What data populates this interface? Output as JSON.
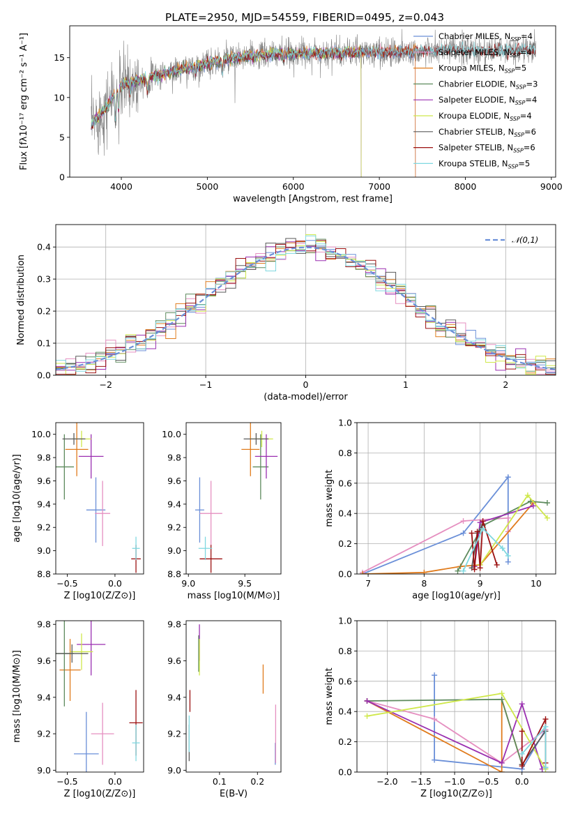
{
  "figure_title": "PLATE=2950, MJD=54559, FIBERID=0495, z=0.043",
  "colors": {
    "Chabrier MILES": "#6a8fd8",
    "Salpeter MILES": "#e58fc0",
    "Kroupa MILES": "#e07b1c",
    "Chabrier ELODIE": "#5d8a5d",
    "Salpeter ELODIE": "#9a2fb0",
    "Kroupa ELODIE": "#cfe84a",
    "Chabrier STELIB": "#5a5a5a",
    "Salpeter STELIB": "#9b1010",
    "Kroupa STELIB": "#7fd8e0"
  },
  "chart_data": [
    {
      "id": "spectrum",
      "type": "line",
      "xlabel": "wavelength [Angstrom, rest frame]",
      "ylabel": "Flux [fλ10⁻¹⁷ erg cm⁻² s⁻¹ A⁻¹]",
      "xlim": [
        3400,
        9050
      ],
      "ylim": [
        0,
        19
      ],
      "xticks": [
        4000,
        5000,
        6000,
        7000,
        8000,
        9000
      ],
      "yticks": [
        0,
        5,
        10,
        15
      ],
      "legend_position": "top-right",
      "data_color": "#808080",
      "data_profile": {
        "x": [
          3650,
          3800,
          4000,
          4300,
          4700,
          5200,
          5800,
          6500,
          7200,
          7800,
          8300,
          8820
        ],
        "y": [
          6.5,
          8.5,
          11.5,
          12.5,
          13.5,
          14.8,
          15.5,
          15.6,
          15.7,
          15.9,
          15.8,
          16.0
        ]
      },
      "series": [
        {
          "name": "Chabrier MILES, N_SSP=4",
          "color": "#6a8fd8",
          "xmax": 7420
        },
        {
          "name": "Salpeter MILES, N_SSP=4",
          "color": "#e58fc0",
          "xmax": 7420
        },
        {
          "name": "Kroupa MILES, N_SSP=5",
          "color": "#e07b1c",
          "xmax": 7420
        },
        {
          "name": "Chabrier ELODIE, N_SSP=3",
          "color": "#5d8a5d",
          "xmax": 6790
        },
        {
          "name": "Salpeter ELODIE, N_SSP=4",
          "color": "#9a2fb0",
          "xmax": 6790
        },
        {
          "name": "Kroupa ELODIE, N_SSP=4",
          "color": "#cfe84a",
          "xmax": 6790
        },
        {
          "name": "Chabrier STELIB, N_SSP=6",
          "color": "#5a5a5a",
          "xmax": 8820
        },
        {
          "name": "Salpeter STELIB, N_SSP=6",
          "color": "#9b1010",
          "xmax": 8820
        },
        {
          "name": "Kroupa STELIB, N_SSP=5",
          "color": "#7fd8e0",
          "xmax": 8820
        }
      ]
    },
    {
      "id": "residuals",
      "type": "step",
      "xlabel": "(data-model)/error",
      "ylabel": "Normed distribution",
      "xlim": [
        -2.5,
        2.5
      ],
      "ylim": [
        0,
        0.47
      ],
      "xticks": [
        -2,
        -1,
        0,
        1,
        2
      ],
      "yticks": [
        0.0,
        0.1,
        0.2,
        0.3,
        0.4
      ],
      "grid": true,
      "bin_width": 0.1,
      "reference_curve": {
        "name": "𝒩(0,1)",
        "color": "#6a8fd8",
        "style": "dashed",
        "mean": 0,
        "sigma": 1
      },
      "legend_position": "top-right"
    },
    {
      "id": "age_vs_Z",
      "type": "errorbar",
      "xlabel": "Z [log10(Z/Z⊙)]",
      "ylabel": "age [log10(age/yr)]",
      "xlim": [
        -0.62,
        0.3
      ],
      "ylim": [
        8.8,
        10.1
      ],
      "xticks": [
        -0.5,
        0.0
      ],
      "yticks": [
        8.8,
        9.0,
        9.2,
        9.4,
        9.6,
        9.8,
        10.0
      ],
      "points": [
        {
          "series": "Chabrier MILES",
          "x": -0.2,
          "xerr": 0.1,
          "y": 9.35,
          "yerr": 0.28
        },
        {
          "series": "Salpeter MILES",
          "x": -0.13,
          "xerr": 0.08,
          "y": 9.32,
          "yerr": 0.28
        },
        {
          "series": "Kroupa MILES",
          "x": -0.4,
          "xerr": 0.12,
          "y": 9.87,
          "yerr": 0.23
        },
        {
          "series": "Chabrier ELODIE",
          "x": -0.53,
          "xerr": 0.1,
          "y": 9.72,
          "yerr": 0.28
        },
        {
          "series": "Salpeter ELODIE",
          "x": -0.25,
          "xerr": 0.13,
          "y": 9.81,
          "yerr": 0.19
        },
        {
          "series": "Kroupa ELODIE",
          "x": -0.35,
          "xerr": 0.1,
          "y": 9.96,
          "yerr": 0.07
        },
        {
          "series": "Chabrier STELIB",
          "x": -0.43,
          "xerr": 0.12,
          "y": 9.96,
          "yerr": 0.05
        },
        {
          "series": "Salpeter STELIB",
          "x": 0.22,
          "xerr": 0.05,
          "y": 8.93,
          "yerr": 0.12
        },
        {
          "series": "Kroupa STELIB",
          "x": 0.22,
          "xerr": 0.04,
          "y": 9.02,
          "yerr": 0.1
        }
      ]
    },
    {
      "id": "age_vs_mass",
      "type": "errorbar",
      "xlabel": "mass [log10(M/M⊙)]",
      "ylabel": "",
      "xlim": [
        8.98,
        9.82
      ],
      "ylim": [
        8.8,
        10.1
      ],
      "xticks": [
        9.0,
        9.5
      ],
      "yticks": [
        8.8,
        9.0,
        9.2,
        9.4,
        9.6,
        9.8,
        10.0
      ],
      "points": [
        {
          "series": "Chabrier MILES",
          "x": 9.1,
          "xerr": 0.04,
          "y": 9.35,
          "yerr": 0.28
        },
        {
          "series": "Salpeter MILES",
          "x": 9.2,
          "xerr": 0.1,
          "y": 9.32,
          "yerr": 0.28
        },
        {
          "series": "Kroupa MILES",
          "x": 9.55,
          "xerr": 0.08,
          "y": 9.87,
          "yerr": 0.23
        },
        {
          "series": "Chabrier ELODIE",
          "x": 9.64,
          "xerr": 0.07,
          "y": 9.72,
          "yerr": 0.28
        },
        {
          "series": "Salpeter ELODIE",
          "x": 9.69,
          "xerr": 0.1,
          "y": 9.81,
          "yerr": 0.19
        },
        {
          "series": "Kroupa ELODIE",
          "x": 9.65,
          "xerr": 0.1,
          "y": 9.96,
          "yerr": 0.07
        },
        {
          "series": "Chabrier STELIB",
          "x": 9.6,
          "xerr": 0.11,
          "y": 9.96,
          "yerr": 0.05
        },
        {
          "series": "Salpeter STELIB",
          "x": 9.2,
          "xerr": 0.1,
          "y": 8.93,
          "yerr": 0.12
        },
        {
          "series": "Kroupa STELIB",
          "x": 9.15,
          "xerr": 0.06,
          "y": 9.02,
          "yerr": 0.1
        }
      ]
    },
    {
      "id": "weight_vs_age",
      "type": "line",
      "xlabel": "age [log10(age/yr)]",
      "ylabel": "mass weight",
      "xlim": [
        6.8,
        10.35
      ],
      "ylim": [
        0,
        1.0
      ],
      "xticks": [
        7,
        8,
        9,
        10
      ],
      "yticks": [
        0.0,
        0.2,
        0.4,
        0.6,
        0.8,
        1.0
      ],
      "grid": true,
      "series": [
        {
          "name": "Chabrier MILES",
          "x": [
            6.9,
            8.7,
            9.5,
            9.5
          ],
          "y": [
            0.0,
            0.27,
            0.64,
            0.08
          ]
        },
        {
          "name": "Salpeter MILES",
          "x": [
            6.9,
            8.7,
            9.5,
            9.5
          ],
          "y": [
            0.01,
            0.35,
            0.37,
            0.28
          ]
        },
        {
          "name": "Kroupa MILES",
          "x": [
            6.9,
            8.0,
            8.65,
            9.0,
            9.95
          ],
          "y": [
            0.0,
            0.01,
            0.05,
            0.06,
            0.47
          ]
        },
        {
          "name": "Chabrier ELODIE",
          "x": [
            8.6,
            9.05,
            9.9,
            10.2
          ],
          "y": [
            0.02,
            0.32,
            0.48,
            0.47
          ]
        },
        {
          "name": "Salpeter ELODIE",
          "x": [
            8.9,
            9.0,
            9.95
          ],
          "y": [
            0.05,
            0.34,
            0.45
          ]
        },
        {
          "name": "Kroupa ELODIE",
          "x": [
            9.0,
            9.85,
            10.2
          ],
          "y": [
            0.06,
            0.52,
            0.37
          ]
        },
        {
          "name": "Chabrier STELIB",
          "x": [
            8.85,
            8.95,
            9.05
          ],
          "y": [
            0.04,
            0.27,
            0.33
          ]
        },
        {
          "name": "Salpeter STELIB",
          "x": [
            8.85,
            8.9,
            8.95,
            9.0,
            9.05,
            9.3
          ],
          "y": [
            0.27,
            0.03,
            0.28,
            0.04,
            0.35,
            0.06
          ]
        },
        {
          "name": "Kroupa STELIB",
          "x": [
            8.7,
            9.05,
            9.4,
            9.5
          ],
          "y": [
            0.02,
            0.3,
            0.17,
            0.12
          ]
        }
      ]
    },
    {
      "id": "mass_vs_Z",
      "type": "errorbar",
      "xlabel": "Z [log10(Z/Z⊙)]",
      "ylabel": "mass [log10(M/M⊙)]",
      "xlim": [
        -0.62,
        0.3
      ],
      "ylim": [
        8.99,
        9.82
      ],
      "xticks": [
        -0.5,
        0.0
      ],
      "yticks": [
        9.0,
        9.2,
        9.4,
        9.6,
        9.8
      ],
      "points": [
        {
          "series": "Chabrier MILES",
          "x": -0.3,
          "xerr": 0.13,
          "y": 9.09,
          "yerr": 0.23
        },
        {
          "series": "Salpeter MILES",
          "x": -0.13,
          "xerr": 0.12,
          "y": 9.2,
          "yerr": 0.17
        },
        {
          "series": "Kroupa MILES",
          "x": -0.47,
          "xerr": 0.11,
          "y": 9.55,
          "yerr": 0.17
        },
        {
          "series": "Chabrier ELODIE",
          "x": -0.53,
          "xerr": 0.1,
          "y": 9.64,
          "yerr": 0.29
        },
        {
          "series": "Salpeter ELODIE",
          "x": -0.25,
          "xerr": 0.15,
          "y": 9.69,
          "yerr": 0.17
        },
        {
          "series": "Kroupa ELODIE",
          "x": -0.35,
          "xerr": 0.12,
          "y": 9.65,
          "yerr": 0.1
        },
        {
          "series": "Chabrier STELIB",
          "x": -0.45,
          "xerr": 0.17,
          "y": 9.64,
          "yerr": 0.05
        },
        {
          "series": "Salpeter STELIB",
          "x": 0.22,
          "xerr": 0.07,
          "y": 9.26,
          "yerr": 0.18
        },
        {
          "series": "Kroupa STELIB",
          "x": 0.22,
          "xerr": 0.04,
          "y": 9.15,
          "yerr": 0.1
        }
      ]
    },
    {
      "id": "mass_vs_EBV",
      "type": "errorbar",
      "xlabel": "E(B-V)",
      "ylabel": "",
      "xlim": [
        0.012,
        0.262
      ],
      "ylim": [
        8.99,
        9.82
      ],
      "xticks": [
        0.1,
        0.2
      ],
      "yticks": [
        9.0,
        9.2,
        9.4,
        9.6,
        9.8
      ],
      "points": [
        {
          "series": "Chabrier MILES",
          "x": 0.247,
          "xerr": 0.0,
          "y": 9.09,
          "yerr": 0.06
        },
        {
          "series": "Salpeter MILES",
          "x": 0.248,
          "xerr": 0.0,
          "y": 9.2,
          "yerr": 0.16
        },
        {
          "series": "Kroupa MILES",
          "x": 0.215,
          "xerr": 0.0,
          "y": 9.5,
          "yerr": 0.08
        },
        {
          "series": "Chabrier ELODIE",
          "x": 0.045,
          "xerr": 0.0,
          "y": 9.64,
          "yerr": 0.1
        },
        {
          "series": "Salpeter ELODIE",
          "x": 0.047,
          "xerr": 0.0,
          "y": 9.7,
          "yerr": 0.1
        },
        {
          "series": "Kroupa ELODIE",
          "x": 0.047,
          "xerr": 0.0,
          "y": 9.62,
          "yerr": 0.1
        },
        {
          "series": "Chabrier STELIB",
          "x": 0.02,
          "xerr": 0.0,
          "y": 9.15,
          "yerr": 0.1
        },
        {
          "series": "Salpeter STELIB",
          "x": 0.022,
          "xerr": 0.0,
          "y": 9.38,
          "yerr": 0.06
        },
        {
          "series": "Kroupa STELIB",
          "x": 0.02,
          "xerr": 0.0,
          "y": 9.2,
          "yerr": 0.1
        }
      ]
    },
    {
      "id": "weight_vs_Z",
      "type": "line",
      "xlabel": "Z [log10(Z/Z⊙)]",
      "ylabel": "mass weight",
      "xlim": [
        -2.45,
        0.5
      ],
      "ylim": [
        0,
        1.0
      ],
      "xticks": [
        -2.0,
        -1.5,
        -1.0,
        -0.5,
        0.0
      ],
      "yticks": [
        0.0,
        0.2,
        0.4,
        0.6,
        0.8,
        1.0
      ],
      "grid": true,
      "series": [
        {
          "name": "Chabrier MILES",
          "x": [
            -1.3,
            -1.3,
            0.0,
            0.35
          ],
          "y": [
            0.64,
            0.08,
            0.02,
            0.28
          ]
        },
        {
          "name": "Salpeter MILES",
          "x": [
            -2.3,
            -1.3,
            -0.3,
            0.35
          ],
          "y": [
            0.47,
            0.35,
            0.06,
            0.28
          ]
        },
        {
          "name": "Kroupa MILES",
          "x": [
            -2.3,
            -0.3,
            -0.3,
            0.0
          ],
          "y": [
            0.47,
            0.0,
            0.48,
            0.05
          ]
        },
        {
          "name": "Chabrier ELODIE",
          "x": [
            -2.3,
            -0.3,
            0.0
          ],
          "y": [
            0.47,
            0.48,
            0.05
          ]
        },
        {
          "name": "Salpeter ELODIE",
          "x": [
            -2.3,
            -0.3,
            0.0,
            0.3
          ],
          "y": [
            0.47,
            0.06,
            0.45,
            0.02
          ]
        },
        {
          "name": "Kroupa ELODIE",
          "x": [
            -2.3,
            -0.3,
            0.35
          ],
          "y": [
            0.37,
            0.52,
            0.02
          ]
        },
        {
          "name": "Chabrier STELIB",
          "x": [
            0.0,
            0.35,
            0.35
          ],
          "y": [
            0.05,
            0.27,
            0.03
          ]
        },
        {
          "name": "Salpeter STELIB",
          "x": [
            0.0,
            0.0,
            0.35,
            0.35
          ],
          "y": [
            0.27,
            0.04,
            0.35,
            0.06
          ]
        },
        {
          "name": "Kroupa STELIB",
          "x": [
            0.0,
            0.35,
            0.35
          ],
          "y": [
            0.12,
            0.3,
            0.03
          ]
        }
      ]
    }
  ]
}
